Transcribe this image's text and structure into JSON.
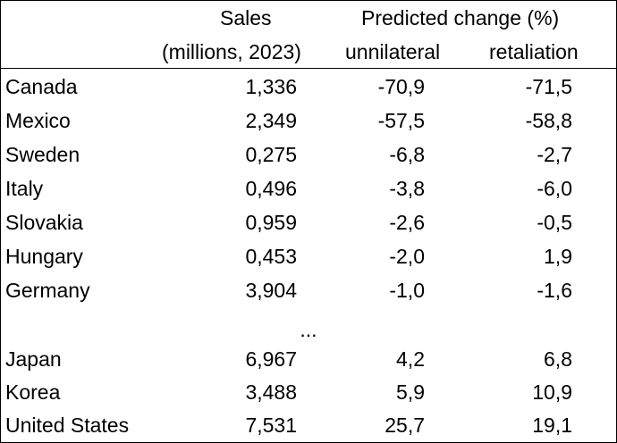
{
  "header": {
    "sales_line1": "Sales",
    "sales_line2": "(millions, 2023)",
    "change_title": "Predicted change (%)",
    "col_unilateral": "unnilateral",
    "col_retaliation": "retaliation"
  },
  "rows_top": [
    {
      "country": "Canada",
      "sales": "1,336",
      "unilateral": "-70,9",
      "retaliation": "-71,5"
    },
    {
      "country": "Mexico",
      "sales": "2,349",
      "unilateral": "-57,5",
      "retaliation": "-58,8"
    },
    {
      "country": "Sweden",
      "sales": "0,275",
      "unilateral": "-6,8",
      "retaliation": "-2,7"
    },
    {
      "country": "Italy",
      "sales": "0,496",
      "unilateral": "-3,8",
      "retaliation": "-6,0"
    },
    {
      "country": "Slovakia",
      "sales": "0,959",
      "unilateral": "-2,6",
      "retaliation": "-0,5"
    },
    {
      "country": "Hungary",
      "sales": "0,453",
      "unilateral": "-2,0",
      "retaliation": "1,9"
    },
    {
      "country": "Germany",
      "sales": "3,904",
      "unilateral": "-1,0",
      "retaliation": "-1,6"
    }
  ],
  "ellipsis": "...",
  "rows_bottom": [
    {
      "country": "Japan",
      "sales": "6,967",
      "unilateral": "4,2",
      "retaliation": "6,8"
    },
    {
      "country": "Korea",
      "sales": "3,488",
      "unilateral": "5,9",
      "retaliation": "10,9"
    },
    {
      "country": "United States",
      "sales": "7,531",
      "unilateral": "25,7",
      "retaliation": "19,1"
    }
  ]
}
